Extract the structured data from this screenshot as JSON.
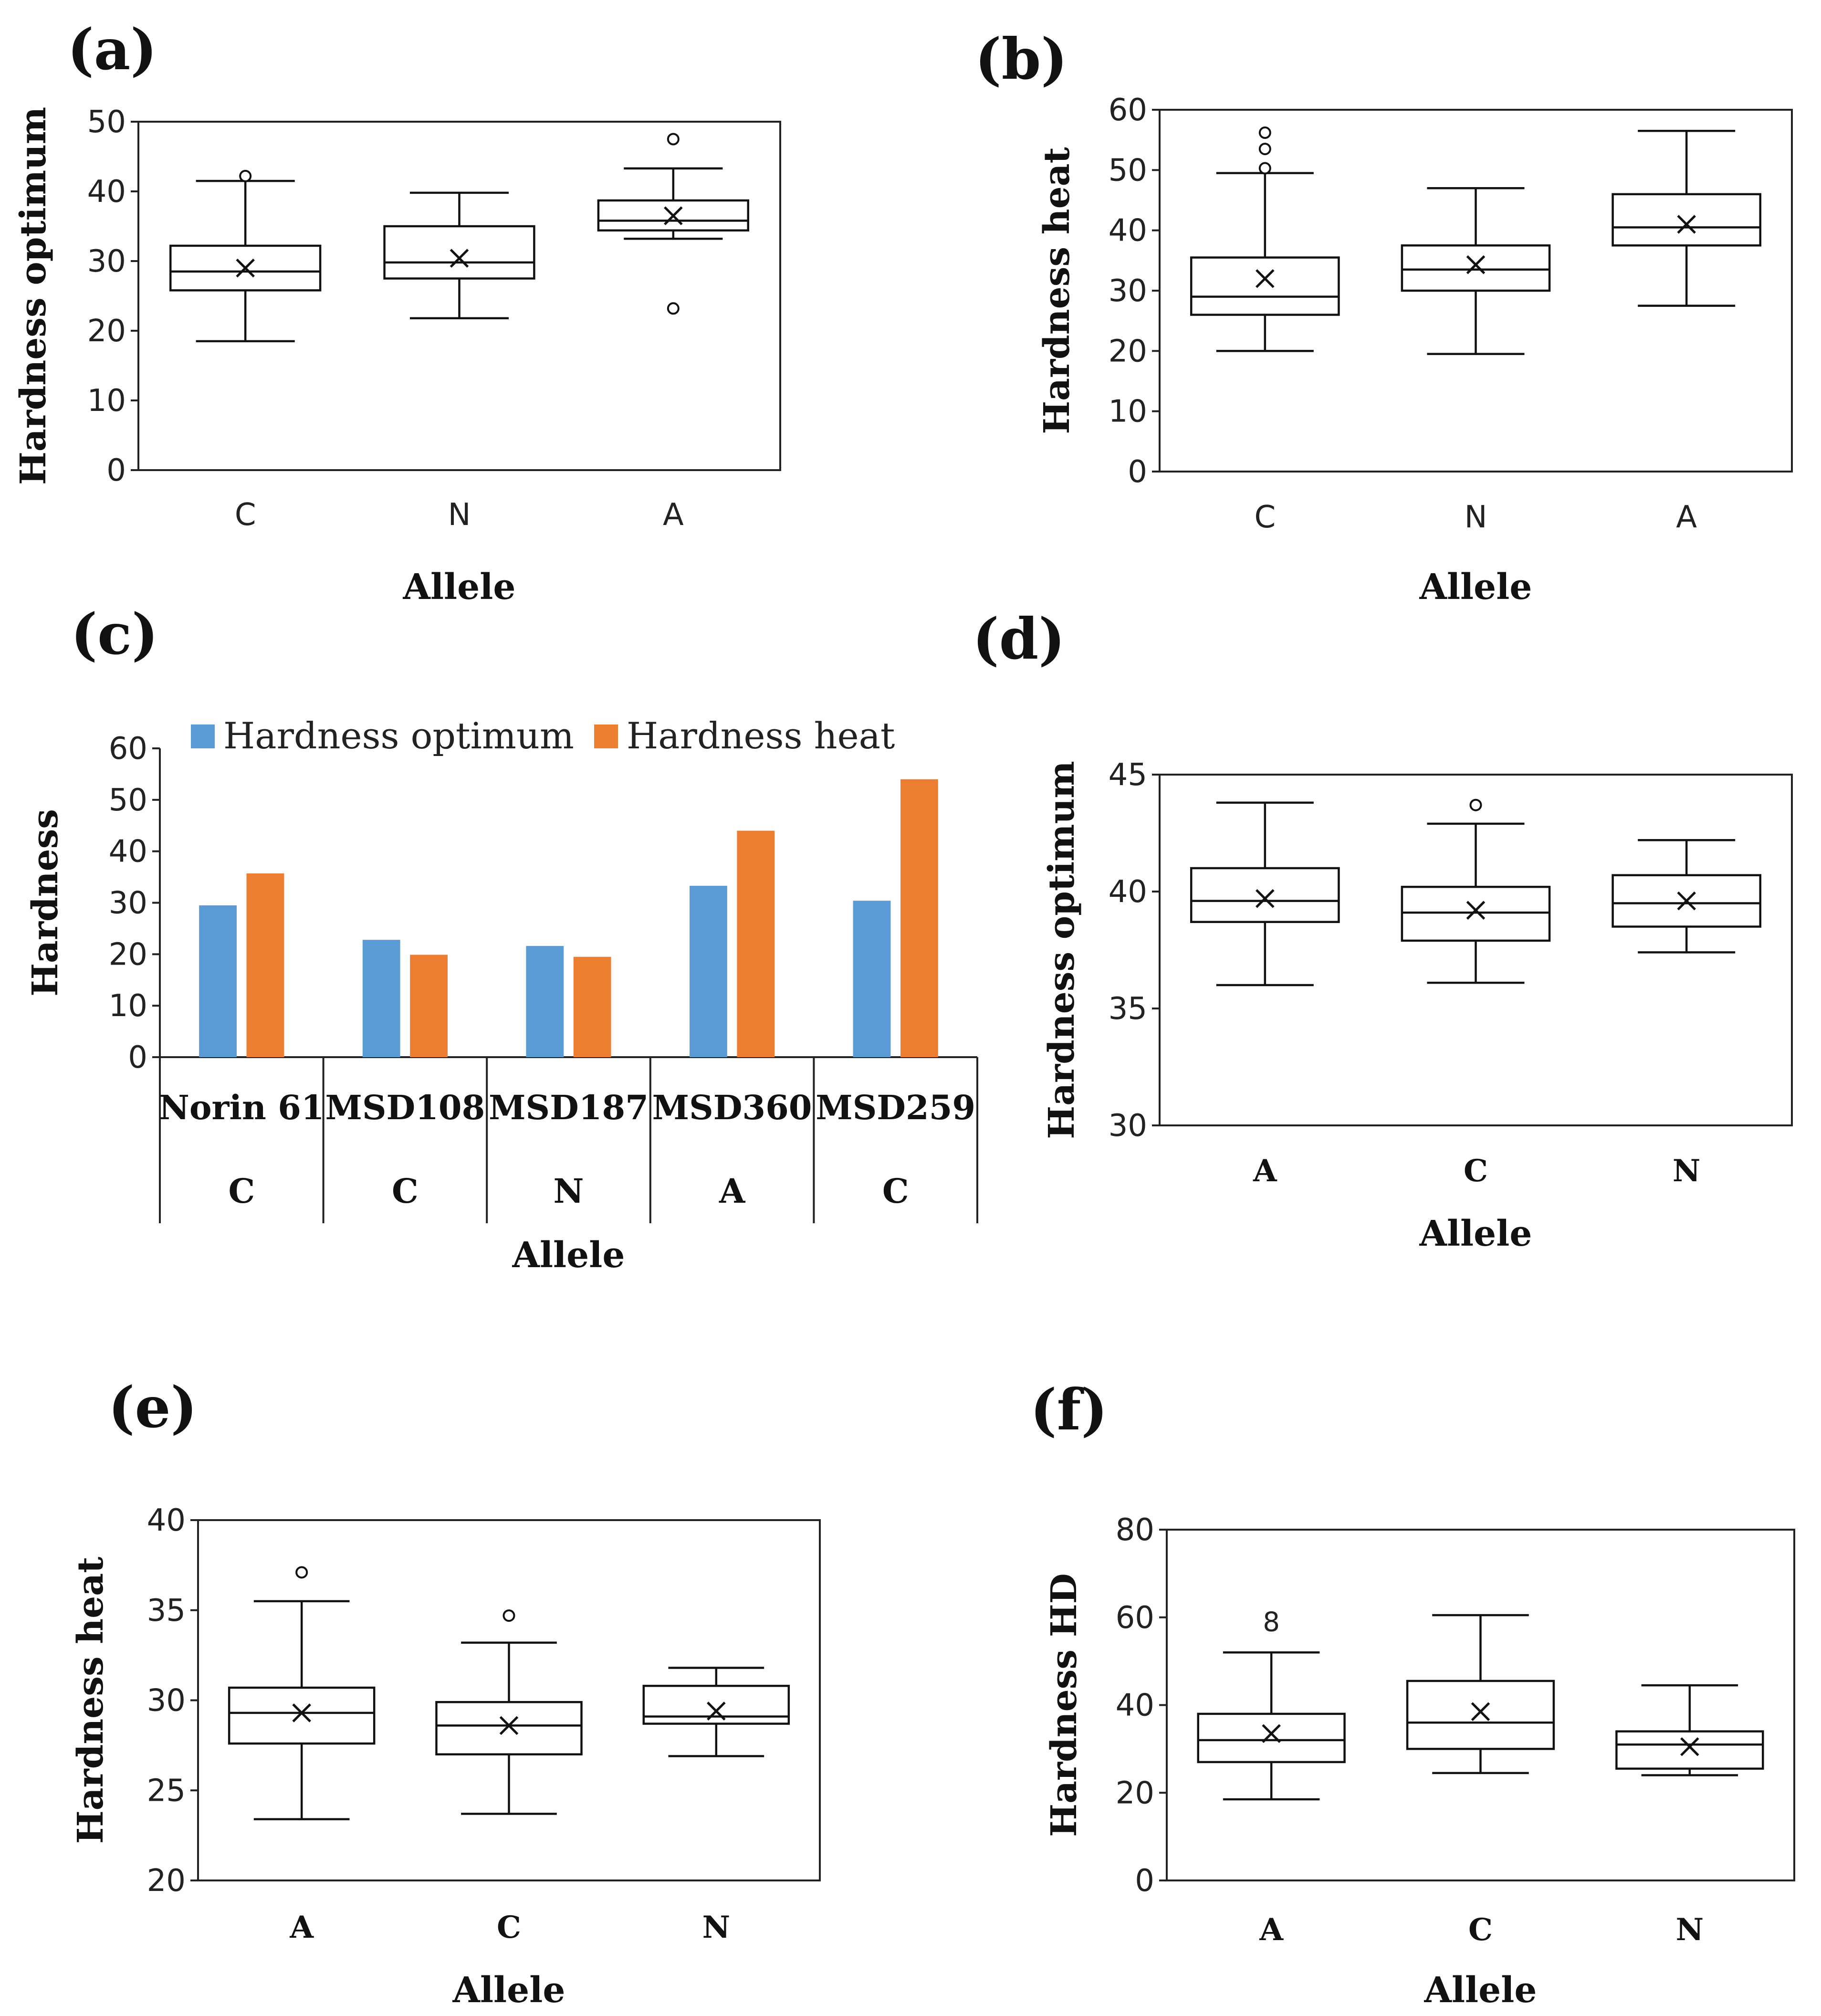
{
  "chart_data": [
    {
      "panel": "(a)",
      "type": "box",
      "ylabel": "Hardness optimum",
      "xlabel": "Allele",
      "ylim": [
        0,
        50
      ],
      "yticks": [
        0,
        10,
        20,
        30,
        40,
        50
      ],
      "categories": [
        "C",
        "N",
        "A"
      ],
      "boxes": [
        {
          "category": "C",
          "min": 18.5,
          "q1": 25.8,
          "median": 28.5,
          "q3": 32.2,
          "max": 41.5,
          "mean": 29.0,
          "outliers": [
            42.2
          ]
        },
        {
          "category": "N",
          "min": 21.8,
          "q1": 27.5,
          "median": 29.8,
          "q3": 35.0,
          "max": 39.8,
          "mean": 30.4,
          "outliers": []
        },
        {
          "category": "A",
          "min": 33.2,
          "q1": 34.4,
          "median": 35.8,
          "q3": 38.7,
          "max": 43.3,
          "mean": 36.5,
          "outliers": [
            47.5,
            23.2
          ]
        }
      ]
    },
    {
      "panel": "(b)",
      "type": "box",
      "ylabel": "Hardness heat",
      "xlabel": "Allele",
      "ylim": [
        0,
        60
      ],
      "yticks": [
        0,
        10,
        20,
        30,
        40,
        50,
        60
      ],
      "categories": [
        "C",
        "N",
        "A"
      ],
      "boxes": [
        {
          "category": "C",
          "min": 20.0,
          "q1": 26.0,
          "median": 29.0,
          "q3": 35.5,
          "max": 49.5,
          "mean": 32.0,
          "outliers": [
            50.3,
            53.5,
            56.2
          ]
        },
        {
          "category": "N",
          "min": 19.5,
          "q1": 30.0,
          "median": 33.5,
          "q3": 37.5,
          "max": 47.0,
          "mean": 34.3,
          "outliers": []
        },
        {
          "category": "A",
          "min": 27.5,
          "q1": 37.5,
          "median": 40.5,
          "q3": 46.0,
          "max": 56.5,
          "mean": 41.0,
          "outliers": []
        }
      ]
    },
    {
      "panel": "(c)",
      "type": "bar",
      "ylabel": "Hardness",
      "xlabel": "Allele",
      "ylim": [
        0,
        60
      ],
      "yticks": [
        0,
        10,
        20,
        30,
        40,
        50,
        60
      ],
      "categories": [
        "Norin 61",
        "MSD108",
        "MSD187",
        "MSD360",
        "MSD259"
      ],
      "alleles": [
        "C",
        "C",
        "N",
        "A",
        "C"
      ],
      "series": [
        {
          "name": "Hardness optimum",
          "color": "#5b9bd5",
          "values": [
            29.5,
            22.8,
            21.6,
            33.3,
            30.4
          ]
        },
        {
          "name": "Hardness heat",
          "color": "#ed7d31",
          "values": [
            35.7,
            19.9,
            19.5,
            44.0,
            54.0
          ]
        }
      ],
      "legend": "top"
    },
    {
      "panel": "(d)",
      "type": "box",
      "ylabel": "Hardness optimum",
      "xlabel": "Allele",
      "ylim": [
        30,
        45
      ],
      "yticks": [
        30,
        35,
        40,
        45
      ],
      "categories": [
        "A",
        "C",
        "N"
      ],
      "boxes": [
        {
          "category": "A",
          "min": 36.0,
          "q1": 38.7,
          "median": 39.6,
          "q3": 41.0,
          "max": 43.8,
          "mean": 39.7,
          "outliers": []
        },
        {
          "category": "C",
          "min": 36.1,
          "q1": 37.9,
          "median": 39.1,
          "q3": 40.2,
          "max": 42.9,
          "mean": 39.2,
          "outliers": [
            43.7
          ]
        },
        {
          "category": "N",
          "min": 37.4,
          "q1": 38.5,
          "median": 39.5,
          "q3": 40.7,
          "max": 42.2,
          "mean": 39.6,
          "outliers": []
        }
      ]
    },
    {
      "panel": "(e)",
      "type": "box",
      "ylabel": "Hardness heat",
      "xlabel": "Allele",
      "ylim": [
        20,
        40
      ],
      "yticks": [
        20,
        25,
        30,
        35,
        40
      ],
      "categories": [
        "A",
        "C",
        "N"
      ],
      "boxes": [
        {
          "category": "A",
          "min": 23.4,
          "q1": 27.6,
          "median": 29.3,
          "q3": 30.7,
          "max": 35.5,
          "mean": 29.3,
          "outliers": [
            37.1
          ]
        },
        {
          "category": "C",
          "min": 23.7,
          "q1": 27.0,
          "median": 28.6,
          "q3": 29.9,
          "max": 33.2,
          "mean": 28.6,
          "outliers": [
            34.7
          ]
        },
        {
          "category": "N",
          "min": 26.9,
          "q1": 28.7,
          "median": 29.1,
          "q3": 30.8,
          "max": 31.8,
          "mean": 29.4,
          "outliers": []
        }
      ]
    },
    {
      "panel": "(f)",
      "type": "box",
      "ylabel": "Hardness HD",
      "xlabel": "Allele",
      "ylim": [
        0,
        80
      ],
      "yticks": [
        0,
        20,
        40,
        60,
        80
      ],
      "categories": [
        "A",
        "C",
        "N"
      ],
      "boxes": [
        {
          "category": "A",
          "min": 18.5,
          "q1": 27.0,
          "median": 32.0,
          "q3": 38.0,
          "max": 52.0,
          "mean": 33.5,
          "outliers": [],
          "label_above": "8"
        },
        {
          "category": "C",
          "min": 24.5,
          "q1": 30.0,
          "median": 36.0,
          "q3": 45.5,
          "max": 60.5,
          "mean": 38.5,
          "outliers": []
        },
        {
          "category": "N",
          "min": 24.0,
          "q1": 25.5,
          "median": 31.0,
          "q3": 34.0,
          "max": 44.5,
          "mean": 30.5,
          "outliers": []
        }
      ]
    }
  ]
}
